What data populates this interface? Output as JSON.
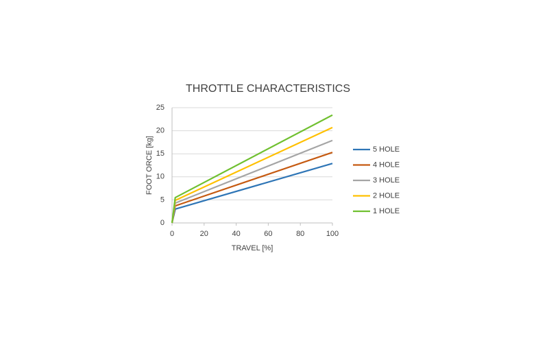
{
  "chart_data": {
    "type": "line",
    "title": "THROTTLE CHARACTERISTICS",
    "x_label": "TRAVEL [%]",
    "y_label": "FOOT ORCE [kg]",
    "x": [
      0,
      2,
      100
    ],
    "series": [
      {
        "name": "5 HOLE",
        "color": "#2e75b6",
        "values": [
          0,
          3.0,
          12.9
        ]
      },
      {
        "name": "4 HOLE",
        "color": "#c55a11",
        "values": [
          0,
          3.7,
          15.3
        ]
      },
      {
        "name": "3 HOLE",
        "color": "#a5a5a5",
        "values": [
          0,
          4.3,
          17.9
        ]
      },
      {
        "name": "2 HOLE",
        "color": "#ffc000",
        "values": [
          0,
          4.9,
          20.7
        ]
      },
      {
        "name": "1 HOLE",
        "color": "#70c030",
        "values": [
          0,
          5.5,
          23.4
        ]
      }
    ],
    "xlim": [
      0,
      100
    ],
    "xticks": [
      0,
      20,
      40,
      60,
      80,
      100
    ],
    "ylim": [
      0,
      25
    ],
    "yticks": [
      0,
      5,
      10,
      15,
      20,
      25
    ],
    "grid": true,
    "legend": "right"
  }
}
